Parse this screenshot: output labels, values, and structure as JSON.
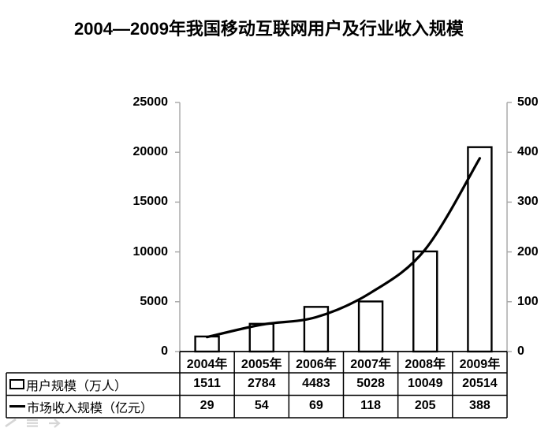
{
  "title": "2004—2009年我国移动互联网用户及行业收入规模",
  "chart_data": {
    "type": "combo-bar-line",
    "title": "2004—2009年我国移动互联网用户及行业收入规模",
    "categories": [
      "2004年",
      "2005年",
      "2006年",
      "2007年",
      "2008年",
      "2009年"
    ],
    "series": [
      {
        "name": "用户规模（万人）",
        "type": "bar",
        "axis": "left",
        "values": [
          1511,
          2784,
          4483,
          5028,
          10049,
          20514
        ],
        "fill": "#ffffff",
        "stroke": "#000000"
      },
      {
        "name": "市场收入规模（亿元）",
        "type": "line",
        "axis": "right",
        "values": [
          29,
          54,
          69,
          118,
          205,
          388
        ],
        "stroke": "#000000"
      }
    ],
    "left_axis": {
      "min": 0,
      "max": 25000,
      "step": 5000,
      "tick_labels": [
        "0",
        "5000",
        "10000",
        "15000",
        "20000",
        "25000"
      ]
    },
    "right_axis": {
      "min": 0,
      "max": 500,
      "step": 100,
      "tick_labels": [
        "0",
        "100",
        "200",
        "300",
        "400",
        "500"
      ]
    },
    "grid": false,
    "legend_position": "table-rows-left",
    "axis_color": "#a6a6a6",
    "mark_color": "#000000"
  },
  "table": {
    "header_row": [
      "2004年",
      "2005年",
      "2006年",
      "2007年",
      "2008年",
      "2009年"
    ],
    "rows": [
      {
        "key_icon": "bar-legend-key-icon",
        "label": "用户规模（万人）",
        "values": [
          "1511",
          "2784",
          "4483",
          "5028",
          "10049",
          "20514"
        ]
      },
      {
        "key_icon": "line-legend-key-icon",
        "label": "市场收入规模（亿元）",
        "values": [
          "29",
          "54",
          "69",
          "118",
          "205",
          "388"
        ]
      }
    ]
  },
  "watermark": {
    "icons": [
      "pencil-icon",
      "list-icon",
      "arrow-icon"
    ],
    "color": "#d6d6d6"
  }
}
